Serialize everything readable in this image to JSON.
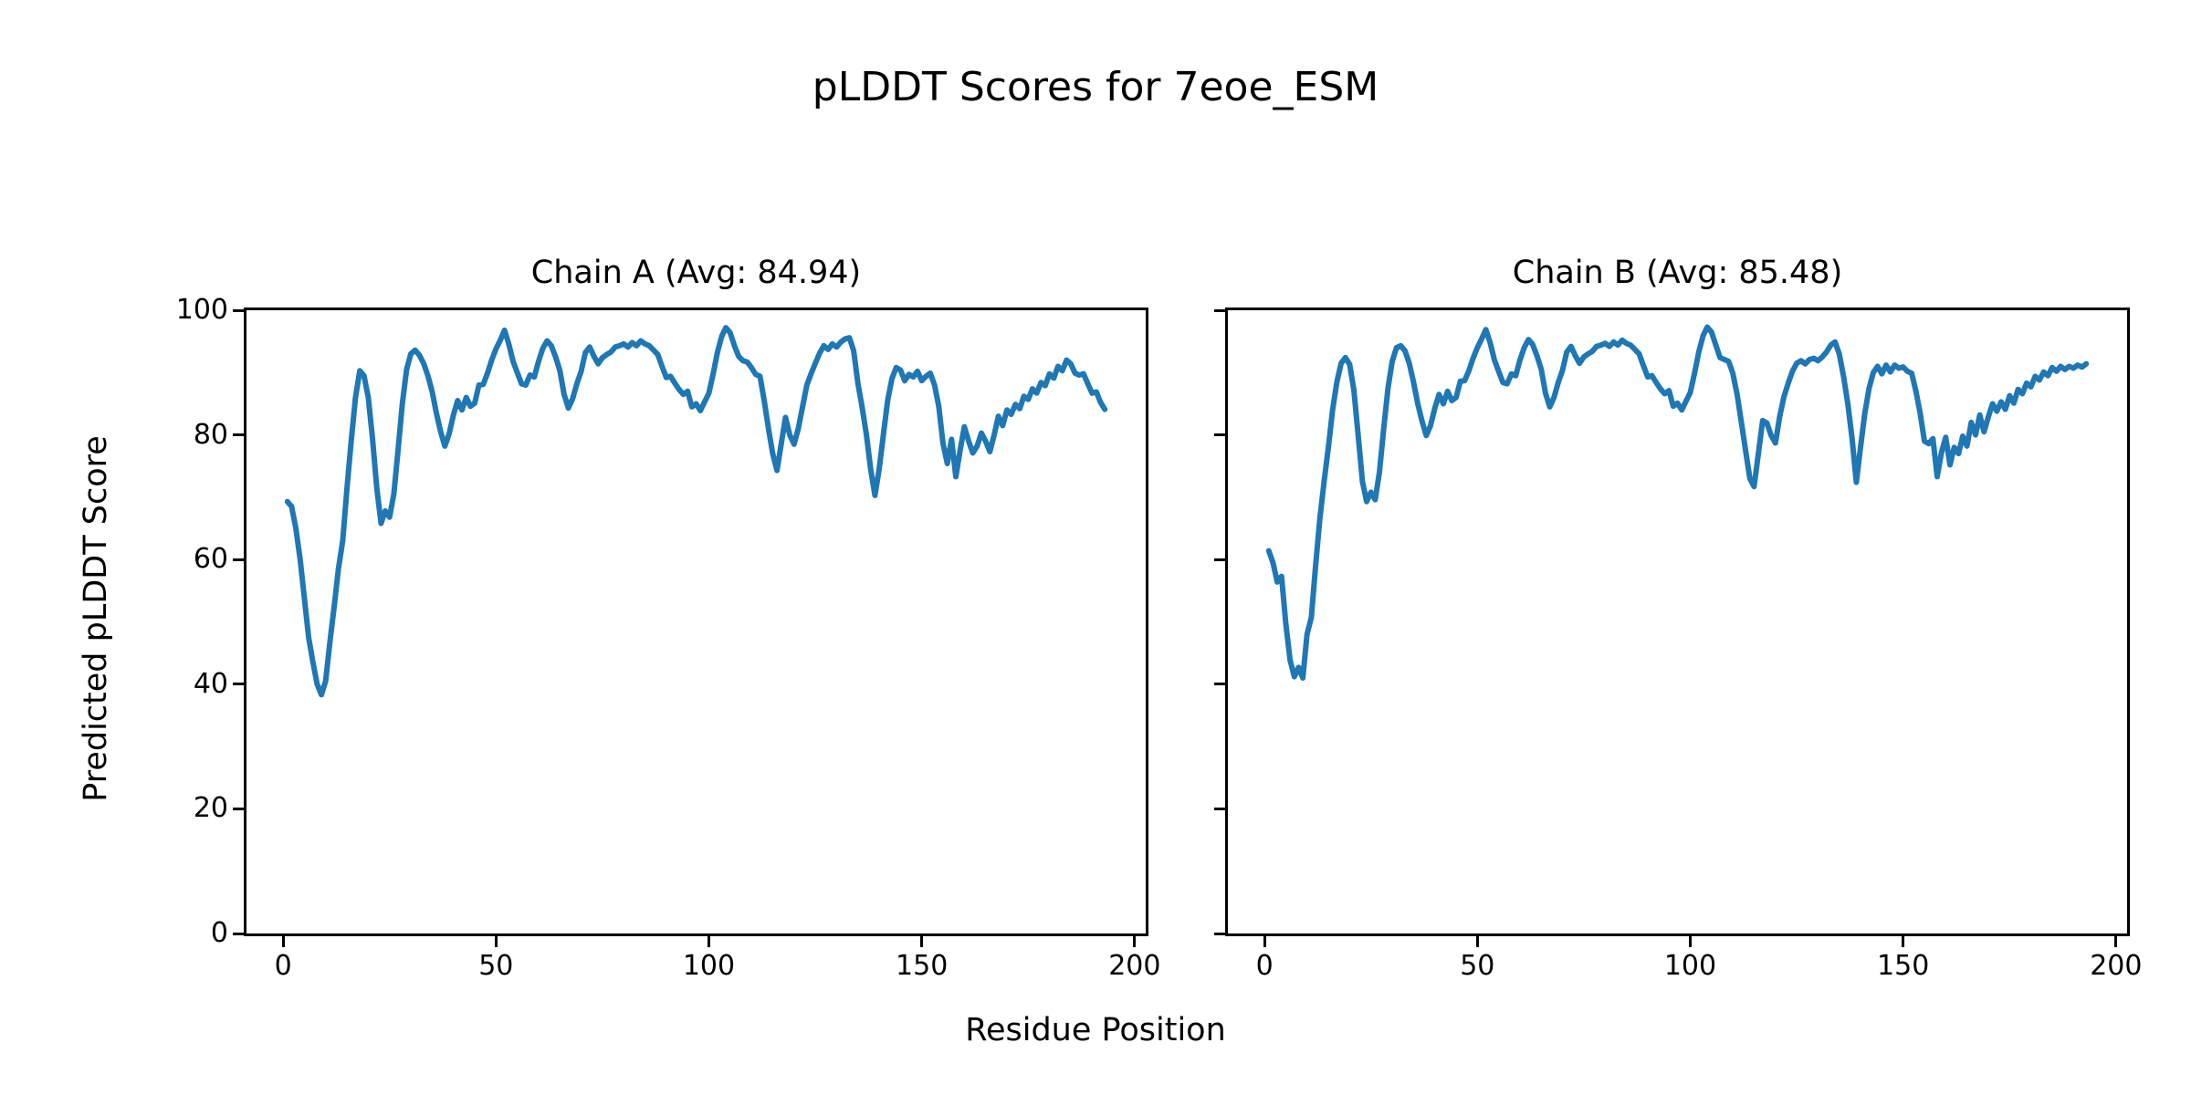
{
  "figure": {
    "suptitle": "pLDDT Scores for 7eoe_ESM",
    "xlabel": "Residue Position",
    "ylabel": "Predicted pLDDT Score",
    "background_color": "#ffffff",
    "text_color": "#000000"
  },
  "chart_data": [
    {
      "type": "line",
      "title": "Chain A (Avg: 84.94)",
      "avg": 84.94,
      "xlabel": "Residue Position",
      "ylabel": "Predicted pLDDT Score",
      "xlim": [
        -8.6,
        202.6
      ],
      "ylim": [
        0,
        100
      ],
      "xticks": [
        0,
        50,
        100,
        150,
        200
      ],
      "yticks": [
        0,
        20,
        40,
        60,
        80,
        100
      ],
      "grid": false,
      "legend": "none",
      "line_color": "#1f77b4",
      "x_start": 1,
      "series": [
        {
          "name": "Chain A pLDDT",
          "values": [
            69.3,
            68.5,
            65.0,
            60.0,
            53.8,
            47.5,
            43.5,
            40.0,
            38.3,
            40.5,
            46.8,
            52.5,
            58.5,
            63.0,
            71.5,
            79.0,
            86.0,
            90.3,
            89.5,
            86.0,
            79.5,
            71.5,
            65.8,
            67.8,
            66.8,
            70.5,
            77.5,
            85.0,
            90.5,
            93.0,
            93.6,
            92.8,
            91.5,
            89.5,
            87.0,
            83.5,
            80.5,
            78.2,
            80.2,
            83.2,
            85.5,
            84.0,
            86.0,
            84.6,
            85.1,
            88.0,
            88.1,
            89.9,
            92.0,
            93.8,
            95.2,
            96.8,
            94.6,
            91.8,
            90.0,
            88.2,
            88.0,
            89.6,
            89.3,
            91.8,
            93.9,
            95.1,
            94.3,
            92.5,
            90.3,
            86.5,
            84.3,
            85.8,
            88.2,
            90.2,
            93.2,
            94.1,
            92.6,
            91.4,
            92.4,
            92.9,
            93.3,
            94.1,
            94.3,
            94.6,
            94.1,
            94.8,
            94.3,
            95.1,
            94.6,
            94.3,
            93.6,
            92.9,
            91.0,
            89.2,
            89.4,
            88.3,
            87.3,
            86.5,
            87.0,
            84.5,
            85.0,
            83.9,
            85.3,
            86.7,
            89.8,
            93.2,
            95.8,
            97.2,
            96.4,
            94.3,
            92.6,
            91.9,
            91.7,
            90.8,
            89.7,
            89.4,
            85.5,
            81.0,
            77.0,
            74.3,
            78.6,
            82.8,
            80.0,
            78.5,
            81.0,
            84.5,
            88.0,
            89.8,
            91.5,
            93.1,
            94.3,
            93.7,
            94.6,
            94.1,
            94.9,
            95.4,
            95.6,
            93.5,
            88.3,
            84.4,
            80.0,
            74.5,
            70.3,
            74.5,
            80.1,
            85.6,
            89.0,
            90.8,
            90.4,
            88.7,
            89.7,
            89.3,
            90.2,
            88.7,
            89.4,
            89.9,
            88.0,
            84.6,
            78.6,
            75.4,
            79.3,
            73.3,
            77.5,
            81.3,
            79.0,
            77.1,
            78.2,
            80.3,
            79.0,
            77.3,
            80.0,
            83.0,
            81.5,
            84.0,
            83.3,
            84.9,
            84.2,
            86.2,
            85.7,
            87.4,
            86.7,
            88.4,
            87.9,
            89.8,
            89.1,
            91.0,
            90.3,
            92.0,
            91.4,
            89.9,
            89.6,
            89.8,
            88.2,
            86.7,
            86.9,
            85.2,
            84.1
          ]
        }
      ]
    },
    {
      "type": "line",
      "title": "Chain B (Avg: 85.48)",
      "avg": 85.48,
      "xlabel": "Residue Position",
      "ylabel": "Predicted pLDDT Score",
      "xlim": [
        -8.6,
        202.6
      ],
      "ylim": [
        0,
        100
      ],
      "xticks": [
        0,
        50,
        100,
        150,
        200
      ],
      "yticks": [
        0,
        20,
        40,
        60,
        80,
        100
      ],
      "grid": false,
      "legend": "none",
      "line_color": "#1f77b4",
      "x_start": 1,
      "series": [
        {
          "name": "Chain B pLDDT",
          "values": [
            61.4,
            59.5,
            56.4,
            57.3,
            49.8,
            43.9,
            41.2,
            42.7,
            41.0,
            48.0,
            50.7,
            59.0,
            66.5,
            72.5,
            78.0,
            84.0,
            88.5,
            91.5,
            92.4,
            91.3,
            87.2,
            80.0,
            72.5,
            69.3,
            70.8,
            69.6,
            74.0,
            81.0,
            87.5,
            91.8,
            94.0,
            94.3,
            93.5,
            91.5,
            88.5,
            85.0,
            82.2,
            79.9,
            81.5,
            84.3,
            86.5,
            85.0,
            87.0,
            85.5,
            86.0,
            88.6,
            88.7,
            90.3,
            92.3,
            94.0,
            95.4,
            96.9,
            94.8,
            92.0,
            90.2,
            88.4,
            88.2,
            89.8,
            89.5,
            92.0,
            94.0,
            95.3,
            94.5,
            92.7,
            90.5,
            86.7,
            84.5,
            86.0,
            88.4,
            90.4,
            93.3,
            94.2,
            92.7,
            91.5,
            92.5,
            93.0,
            93.4,
            94.2,
            94.4,
            94.7,
            94.2,
            94.9,
            94.4,
            95.2,
            94.7,
            94.4,
            93.7,
            93.0,
            91.1,
            89.3,
            89.5,
            88.4,
            87.4,
            86.6,
            87.1,
            84.6,
            85.1,
            84.0,
            85.4,
            86.8,
            89.9,
            93.3,
            95.9,
            97.3,
            96.5,
            94.4,
            92.4,
            92.1,
            91.8,
            89.9,
            86.5,
            82.0,
            77.5,
            73.0,
            71.7,
            77.0,
            82.3,
            81.9,
            79.9,
            78.7,
            82.9,
            86.1,
            88.3,
            90.2,
            91.5,
            91.9,
            91.4,
            92.1,
            92.3,
            91.9,
            92.5,
            93.3,
            94.4,
            94.9,
            93.0,
            89.4,
            85.0,
            79.5,
            72.4,
            78.0,
            83.5,
            87.5,
            90.0,
            91.0,
            89.8,
            91.2,
            90.1,
            91.2,
            90.7,
            90.9,
            90.2,
            89.9,
            87.0,
            83.5,
            79.0,
            78.6,
            79.4,
            73.3,
            77.2,
            79.6,
            75.2,
            78.0,
            77.0,
            79.8,
            78.2,
            82.0,
            80.0,
            83.2,
            80.5,
            82.9,
            85.0,
            83.8,
            85.3,
            84.1,
            86.3,
            85.1,
            87.3,
            86.6,
            88.3,
            87.7,
            89.4,
            88.8,
            90.1,
            89.5,
            90.8,
            90.2,
            91.0,
            90.5,
            91.0,
            90.7,
            91.2,
            90.9,
            91.4
          ]
        }
      ]
    }
  ]
}
